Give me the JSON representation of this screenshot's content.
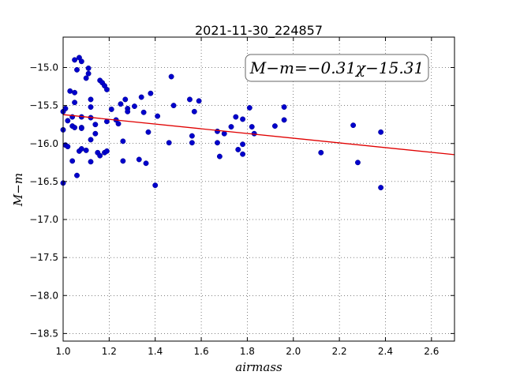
{
  "chart_data": {
    "type": "scatter",
    "title": "2021-11-30_224857",
    "xlabel": "airmass",
    "ylabel": "M−m",
    "xlim": [
      1.0,
      2.7
    ],
    "ylim": [
      -18.6,
      -14.6
    ],
    "x_ticks": [
      1.0,
      1.2,
      1.4,
      1.6,
      1.8,
      2.0,
      2.2,
      2.4,
      2.6
    ],
    "x_tick_labels": [
      "1.0",
      "1.2",
      "1.4",
      "1.6",
      "1.8",
      "2.0",
      "2.2",
      "2.4",
      "2.6"
    ],
    "y_ticks": [
      -15.0,
      -15.5,
      -16.0,
      -16.5,
      -17.0,
      -17.5,
      -18.0,
      -18.5
    ],
    "y_tick_labels": [
      "−15.0",
      "−15.5",
      "−16.0",
      "−16.5",
      "−17.0",
      "−17.5",
      "−18.0",
      "−18.5"
    ],
    "grid": true,
    "points": {
      "x": [
        1.0,
        1.0,
        1.0,
        1.01,
        1.01,
        1.02,
        1.02,
        1.03,
        1.04,
        1.04,
        1.04,
        1.05,
        1.05,
        1.05,
        1.05,
        1.06,
        1.06,
        1.07,
        1.07,
        1.08,
        1.08,
        1.08,
        1.08,
        1.08,
        1.1,
        1.1,
        1.11,
        1.11,
        1.12,
        1.12,
        1.12,
        1.12,
        1.12,
        1.14,
        1.14,
        1.15,
        1.16,
        1.16,
        1.17,
        1.18,
        1.18,
        1.19,
        1.19,
        1.19,
        1.21,
        1.23,
        1.24,
        1.25,
        1.26,
        1.26,
        1.27,
        1.28,
        1.28,
        1.31,
        1.33,
        1.34,
        1.35,
        1.36,
        1.37,
        1.38,
        1.4,
        1.41,
        1.46,
        1.47,
        1.48,
        1.55,
        1.56,
        1.56,
        1.57,
        1.59,
        1.67,
        1.67,
        1.68,
        1.7,
        1.73,
        1.75,
        1.76,
        1.78,
        1.78,
        1.78,
        1.81,
        1.82,
        1.83,
        1.92,
        1.96,
        1.96,
        2.12,
        2.26,
        2.28,
        2.38,
        2.38
      ],
      "y": [
        -16.52,
        -15.82,
        -15.58,
        -15.54,
        -16.02,
        -15.7,
        -16.04,
        -15.31,
        -15.65,
        -15.77,
        -16.23,
        -14.9,
        -15.33,
        -15.46,
        -15.79,
        -15.03,
        -16.42,
        -14.87,
        -16.1,
        -14.92,
        -15.65,
        -15.79,
        -15.8,
        -16.07,
        -15.14,
        -16.09,
        -15.01,
        -15.08,
        -15.42,
        -15.52,
        -15.66,
        -15.95,
        -16.24,
        -15.75,
        -15.87,
        -16.12,
        -15.17,
        -16.16,
        -15.2,
        -15.24,
        -16.12,
        -15.29,
        -15.71,
        -16.1,
        -15.55,
        -15.69,
        -15.74,
        -15.48,
        -15.97,
        -16.23,
        -15.42,
        -15.54,
        -15.58,
        -15.51,
        -16.21,
        -15.39,
        -15.59,
        -16.26,
        -15.85,
        -15.34,
        -16.55,
        -15.64,
        -15.99,
        -15.12,
        -15.5,
        -15.42,
        -15.9,
        -15.99,
        -15.58,
        -15.44,
        -15.84,
        -15.99,
        -16.17,
        -15.87,
        -15.78,
        -15.65,
        -16.08,
        -15.68,
        -16.01,
        -16.14,
        -15.53,
        -15.78,
        -15.87,
        -15.77,
        -15.52,
        -15.69,
        -16.12,
        -15.76,
        -16.25,
        -15.85,
        -16.58
      ],
      "color": "#0000cc"
    },
    "fit_line": {
      "slope": -0.31,
      "intercept": -15.31,
      "color": "#e00000",
      "label": "M−m=−0.31χ−15.31"
    }
  }
}
